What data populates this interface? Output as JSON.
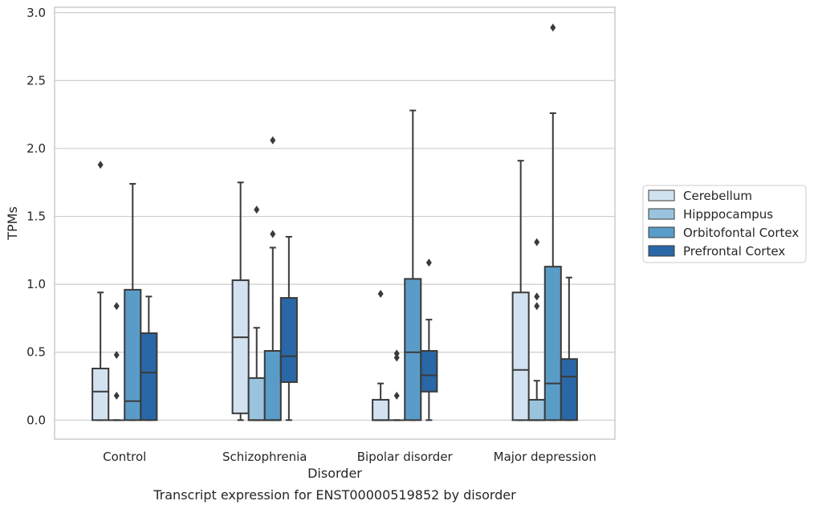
{
  "chart_data": {
    "type": "box",
    "caption": "Transcript expression for ENST00000519852 by disorder",
    "xlabel": "Disorder",
    "ylabel": "TPMs",
    "ylim": [
      -0.14,
      3.04
    ],
    "yticks": [
      "0.0",
      "0.5",
      "1.0",
      "1.5",
      "2.0",
      "2.5",
      "3.0"
    ],
    "grid": true,
    "legend_position": "right",
    "categories": [
      "Control",
      "Schizophrenia",
      "Bipolar disorder",
      "Major depression"
    ],
    "series": [
      {
        "name": "Cerebellum",
        "color": "#d2e2f1",
        "boxes": [
          {
            "q1": 0.0,
            "median": 0.21,
            "q3": 0.38,
            "whisker_low": 0.0,
            "whisker_high": 0.94,
            "outliers": [
              1.88
            ]
          },
          {
            "q1": 0.05,
            "median": 0.61,
            "q3": 1.03,
            "whisker_low": 0.0,
            "whisker_high": 1.75,
            "outliers": []
          },
          {
            "q1": 0.0,
            "median": 0.0,
            "q3": 0.15,
            "whisker_low": 0.0,
            "whisker_high": 0.27,
            "outliers": [
              0.93
            ]
          },
          {
            "q1": 0.0,
            "median": 0.37,
            "q3": 0.94,
            "whisker_low": 0.0,
            "whisker_high": 1.91,
            "outliers": []
          }
        ]
      },
      {
        "name": "Hipppocampus",
        "color": "#9ac4de",
        "boxes": [
          {
            "q1": 0.0,
            "median": 0.0,
            "q3": 0.0,
            "whisker_low": 0.0,
            "whisker_high": 0.0,
            "outliers": [
              0.18,
              0.48,
              0.84
            ]
          },
          {
            "q1": 0.0,
            "median": 0.0,
            "q3": 0.31,
            "whisker_low": 0.0,
            "whisker_high": 0.68,
            "outliers": [
              1.55
            ]
          },
          {
            "q1": 0.0,
            "median": 0.0,
            "q3": 0.0,
            "whisker_low": 0.0,
            "whisker_high": 0.0,
            "outliers": [
              0.18,
              0.46,
              0.49
            ]
          },
          {
            "q1": 0.0,
            "median": 0.0,
            "q3": 0.15,
            "whisker_low": 0.0,
            "whisker_high": 0.29,
            "outliers": [
              0.84,
              0.91,
              1.31
            ]
          }
        ]
      },
      {
        "name": "Orbitofontal Cortex",
        "color": "#5a9cc8",
        "boxes": [
          {
            "q1": 0.0,
            "median": 0.14,
            "q3": 0.96,
            "whisker_low": 0.0,
            "whisker_high": 1.74,
            "outliers": []
          },
          {
            "q1": 0.0,
            "median": 0.0,
            "q3": 0.51,
            "whisker_low": 0.0,
            "whisker_high": 1.27,
            "outliers": [
              1.37,
              2.06
            ]
          },
          {
            "q1": 0.0,
            "median": 0.5,
            "q3": 1.04,
            "whisker_low": 0.0,
            "whisker_high": 2.28,
            "outliers": []
          },
          {
            "q1": 0.0,
            "median": 0.27,
            "q3": 1.13,
            "whisker_low": 0.0,
            "whisker_high": 2.26,
            "outliers": [
              2.89
            ]
          }
        ]
      },
      {
        "name": "Prefrontal Cortex",
        "color": "#2a67a6",
        "boxes": [
          {
            "q1": 0.0,
            "median": 0.35,
            "q3": 0.64,
            "whisker_low": 0.0,
            "whisker_high": 0.91,
            "outliers": []
          },
          {
            "q1": 0.28,
            "median": 0.47,
            "q3": 0.9,
            "whisker_low": 0.0,
            "whisker_high": 1.35,
            "outliers": []
          },
          {
            "q1": 0.21,
            "median": 0.33,
            "q3": 0.51,
            "whisker_low": 0.0,
            "whisker_high": 0.74,
            "outliers": [
              1.16
            ]
          },
          {
            "q1": 0.0,
            "median": 0.32,
            "q3": 0.45,
            "whisker_low": 0.0,
            "whisker_high": 1.05,
            "outliers": []
          }
        ]
      }
    ]
  }
}
